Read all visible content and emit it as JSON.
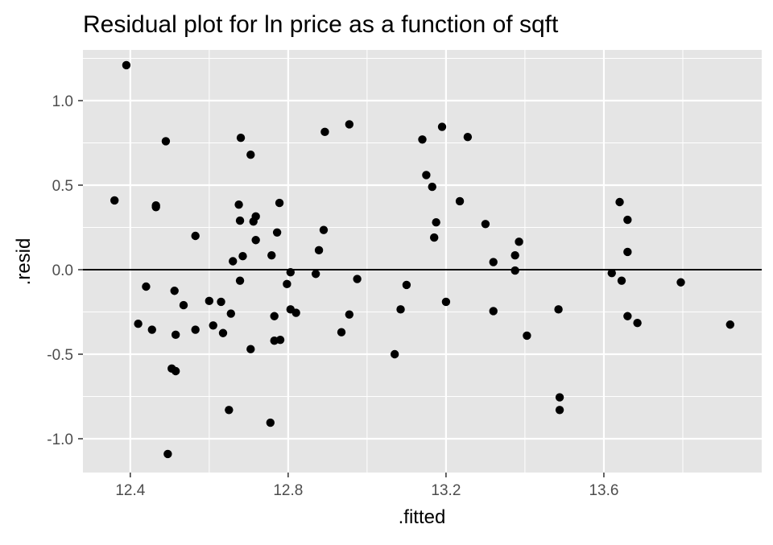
{
  "chart_data": {
    "type": "scatter",
    "title": "Residual plot for ln price as a function of sqft",
    "xlabel": ".fitted",
    "ylabel": ".resid",
    "xlim": [
      12.28,
      14.0
    ],
    "ylim": [
      -1.2,
      1.3
    ],
    "x_ticks": [
      12.4,
      12.8,
      13.2,
      13.6
    ],
    "x_tick_labels": [
      "12.4",
      "12.8",
      "13.2",
      "13.6"
    ],
    "y_ticks": [
      -1.0,
      -0.5,
      0.0,
      0.5,
      1.0
    ],
    "y_tick_labels": [
      "-1.0",
      "-0.5",
      "0.0",
      "0.5",
      "1.0"
    ],
    "reference_line_y": 0,
    "grid": true,
    "colors": {
      "panel_background": "#e5e5e5",
      "grid_major": "#ffffff",
      "points": "#000000",
      "reference_line": "#000000",
      "tick_label": "#4d4d4d"
    },
    "points": [
      {
        "x": 12.39,
        "y": 1.21
      },
      {
        "x": 12.36,
        "y": 0.41
      },
      {
        "x": 12.42,
        "y": -0.32
      },
      {
        "x": 12.44,
        "y": -0.1
      },
      {
        "x": 12.455,
        "y": -0.355
      },
      {
        "x": 12.465,
        "y": 0.38
      },
      {
        "x": 12.465,
        "y": 0.37
      },
      {
        "x": 12.49,
        "y": 0.76
      },
      {
        "x": 12.495,
        "y": -1.09
      },
      {
        "x": 12.505,
        "y": -0.585
      },
      {
        "x": 12.515,
        "y": -0.6
      },
      {
        "x": 12.512,
        "y": -0.125
      },
      {
        "x": 12.515,
        "y": -0.385
      },
      {
        "x": 12.535,
        "y": -0.21
      },
      {
        "x": 12.565,
        "y": 0.2
      },
      {
        "x": 12.565,
        "y": -0.355
      },
      {
        "x": 12.6,
        "y": -0.185
      },
      {
        "x": 12.61,
        "y": -0.33
      },
      {
        "x": 12.63,
        "y": -0.19
      },
      {
        "x": 12.635,
        "y": -0.375
      },
      {
        "x": 12.65,
        "y": -0.83
      },
      {
        "x": 12.655,
        "y": -0.26
      },
      {
        "x": 12.66,
        "y": 0.05
      },
      {
        "x": 12.675,
        "y": 0.385
      },
      {
        "x": 12.678,
        "y": 0.29
      },
      {
        "x": 12.678,
        "y": -0.065
      },
      {
        "x": 12.68,
        "y": 0.78
      },
      {
        "x": 12.685,
        "y": 0.08
      },
      {
        "x": 12.705,
        "y": 0.68
      },
      {
        "x": 12.705,
        "y": -0.47
      },
      {
        "x": 12.712,
        "y": 0.285
      },
      {
        "x": 12.718,
        "y": 0.315
      },
      {
        "x": 12.718,
        "y": 0.175
      },
      {
        "x": 12.755,
        "y": -0.905
      },
      {
        "x": 12.758,
        "y": 0.085
      },
      {
        "x": 12.765,
        "y": -0.275
      },
      {
        "x": 12.765,
        "y": -0.42
      },
      {
        "x": 12.772,
        "y": 0.22
      },
      {
        "x": 12.778,
        "y": 0.395
      },
      {
        "x": 12.78,
        "y": -0.415
      },
      {
        "x": 12.797,
        "y": -0.085
      },
      {
        "x": 12.806,
        "y": -0.015
      },
      {
        "x": 12.806,
        "y": -0.235
      },
      {
        "x": 12.82,
        "y": -0.255
      },
      {
        "x": 12.87,
        "y": -0.025
      },
      {
        "x": 12.878,
        "y": 0.115
      },
      {
        "x": 12.89,
        "y": 0.235
      },
      {
        "x": 12.893,
        "y": 0.815
      },
      {
        "x": 12.935,
        "y": -0.37
      },
      {
        "x": 12.955,
        "y": 0.86
      },
      {
        "x": 12.955,
        "y": -0.265
      },
      {
        "x": 12.975,
        "y": -0.055
      },
      {
        "x": 13.07,
        "y": -0.5
      },
      {
        "x": 13.085,
        "y": -0.235
      },
      {
        "x": 13.1,
        "y": -0.09
      },
      {
        "x": 13.14,
        "y": 0.77
      },
      {
        "x": 13.15,
        "y": 0.56
      },
      {
        "x": 13.165,
        "y": 0.49
      },
      {
        "x": 13.17,
        "y": 0.19
      },
      {
        "x": 13.175,
        "y": 0.28
      },
      {
        "x": 13.19,
        "y": 0.845
      },
      {
        "x": 13.2,
        "y": -0.19
      },
      {
        "x": 13.235,
        "y": 0.405
      },
      {
        "x": 13.255,
        "y": 0.785
      },
      {
        "x": 13.3,
        "y": 0.27
      },
      {
        "x": 13.32,
        "y": 0.045
      },
      {
        "x": 13.32,
        "y": -0.245
      },
      {
        "x": 13.375,
        "y": 0.085
      },
      {
        "x": 13.375,
        "y": -0.005
      },
      {
        "x": 13.385,
        "y": 0.165
      },
      {
        "x": 13.405,
        "y": -0.39
      },
      {
        "x": 13.485,
        "y": -0.235
      },
      {
        "x": 13.488,
        "y": -0.755
      },
      {
        "x": 13.488,
        "y": -0.83
      },
      {
        "x": 13.62,
        "y": -0.02
      },
      {
        "x": 13.64,
        "y": 0.4
      },
      {
        "x": 13.645,
        "y": -0.065
      },
      {
        "x": 13.66,
        "y": 0.295
      },
      {
        "x": 13.66,
        "y": 0.105
      },
      {
        "x": 13.66,
        "y": -0.275
      },
      {
        "x": 13.685,
        "y": -0.315
      },
      {
        "x": 13.795,
        "y": -0.075
      },
      {
        "x": 13.92,
        "y": -0.325
      }
    ]
  }
}
